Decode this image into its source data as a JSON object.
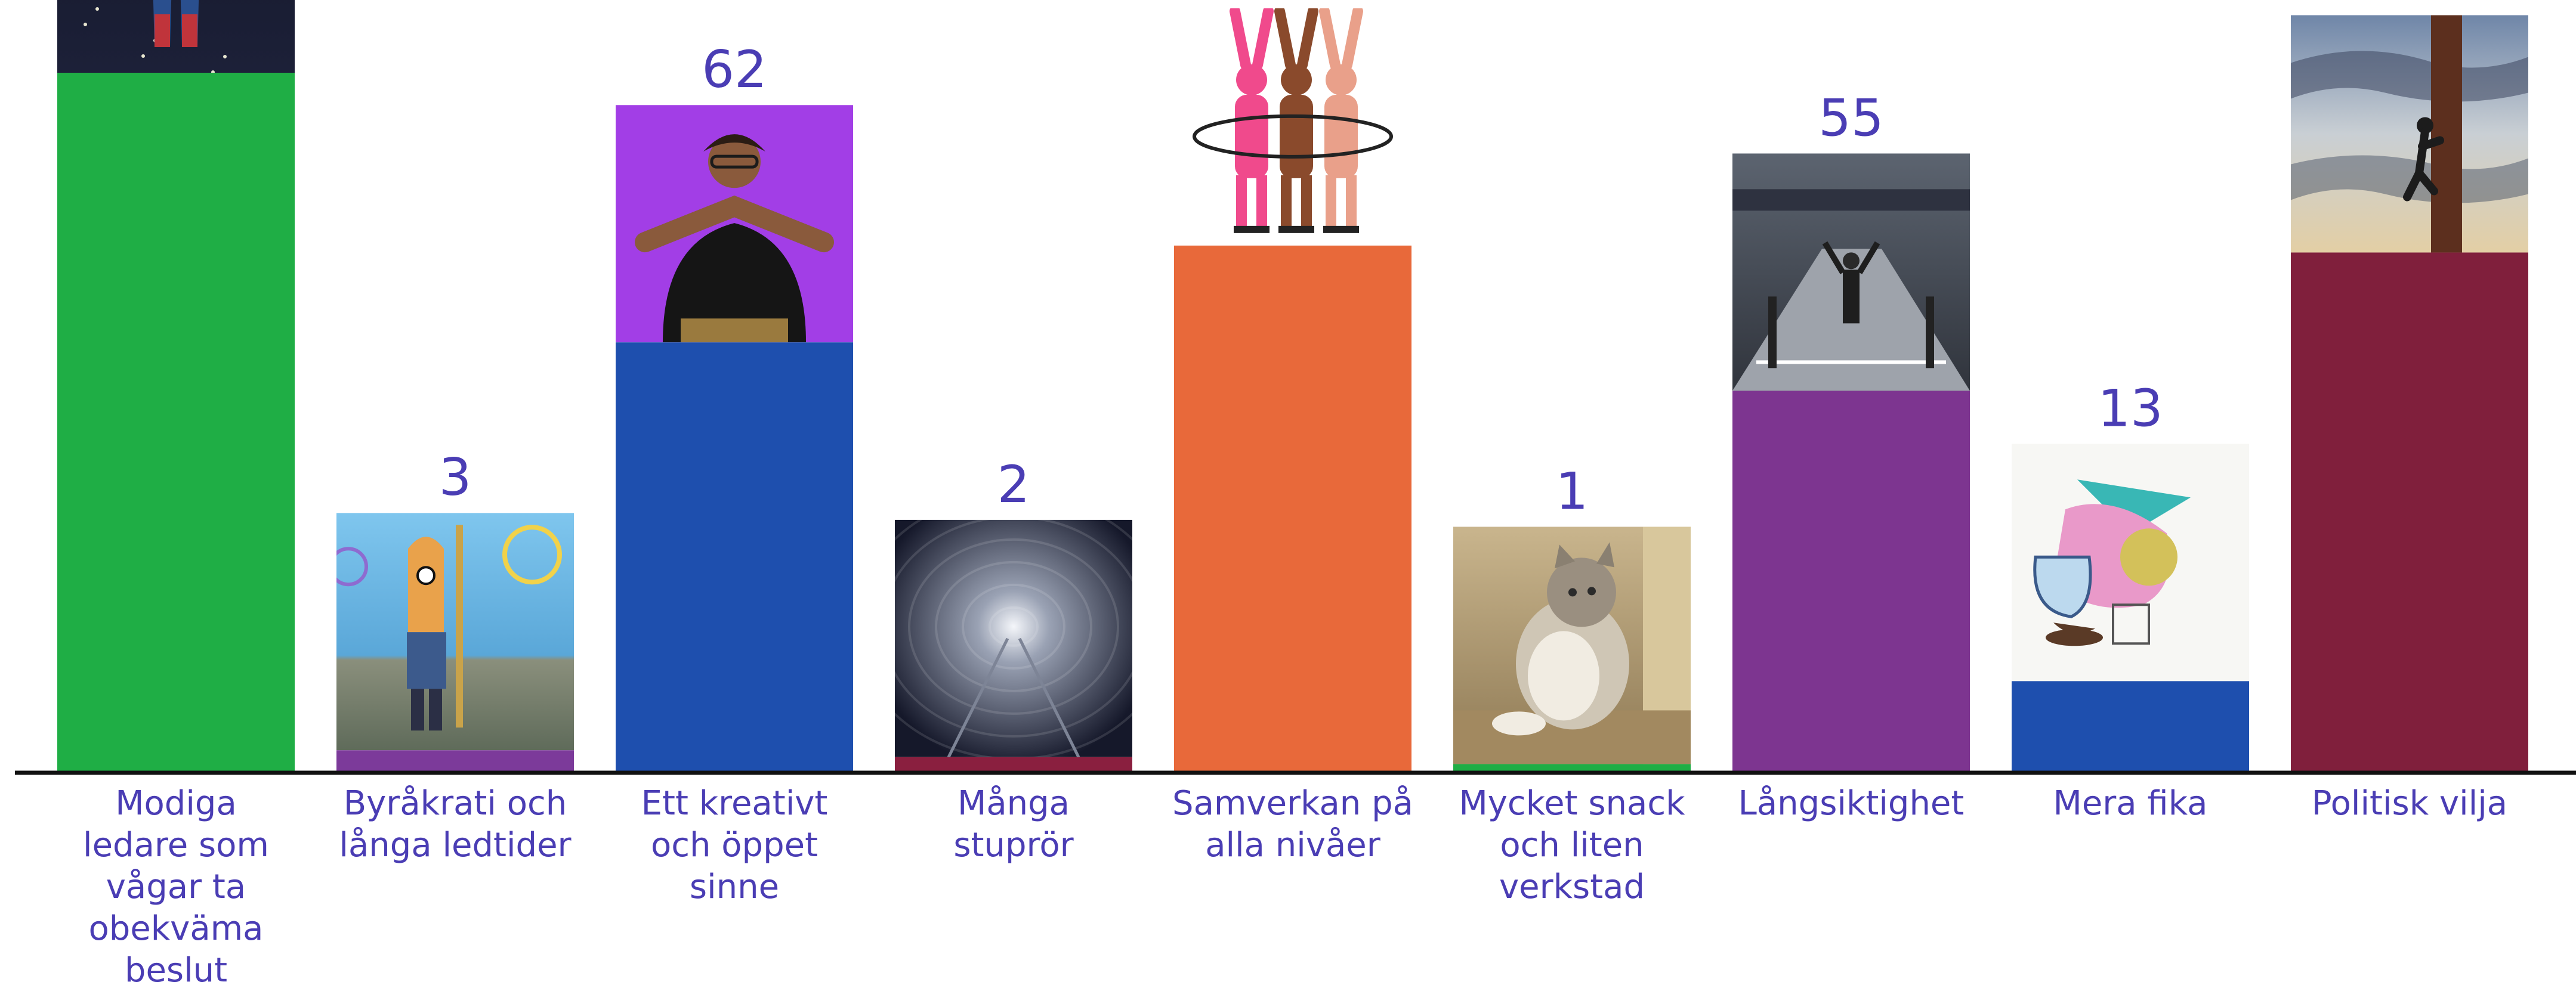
{
  "chart_data": {
    "type": "bar",
    "categories": [
      "Modiga ledare som vågar ta obekväma beslut",
      "Byråkrati och långa ledtider",
      "Ett kreativt och öppet sinne",
      "Många stuprör",
      "Samverkan på alla nivåer",
      "Mycket snack och liten verkstad",
      "Långsiktighet",
      "Mera fika",
      "Politisk vilja"
    ],
    "category_lines": [
      [
        "Modiga",
        "ledare som",
        "vågar ta",
        "obekväma",
        "beslut"
      ],
      [
        "Byråkrati och",
        "långa ledtider"
      ],
      [
        "Ett kreativt",
        "och öppet",
        "sinne"
      ],
      [
        "Många",
        "stuprör"
      ],
      [
        "Samverkan på",
        "alla nivåer"
      ],
      [
        "Mycket snack",
        "och liten",
        "verkstad"
      ],
      [
        "Långsiktighet"
      ],
      [
        "Mera fika"
      ],
      [
        "Politisk vilja"
      ]
    ],
    "values": [
      101,
      3,
      62,
      2,
      76,
      1,
      55,
      13,
      75
    ],
    "colors": [
      "#1fae45",
      "#7c3a9a",
      "#1e4fae",
      "#8a1f3f",
      "#e8693a",
      "#1fae45",
      "#7d3590",
      "#1e4fae",
      "#801f3c"
    ],
    "image_icons": [
      "superhero-image",
      "cartoon-character-image",
      "sign-language-image",
      "tunnel-image",
      "dancers-image",
      "cat-image",
      "finish-line-image",
      "pouring-coffee-image",
      "climber-image"
    ],
    "ylim": [
      0,
      101
    ],
    "title": "",
    "xlabel": "",
    "ylabel": "",
    "grid": false,
    "legend": "none"
  }
}
